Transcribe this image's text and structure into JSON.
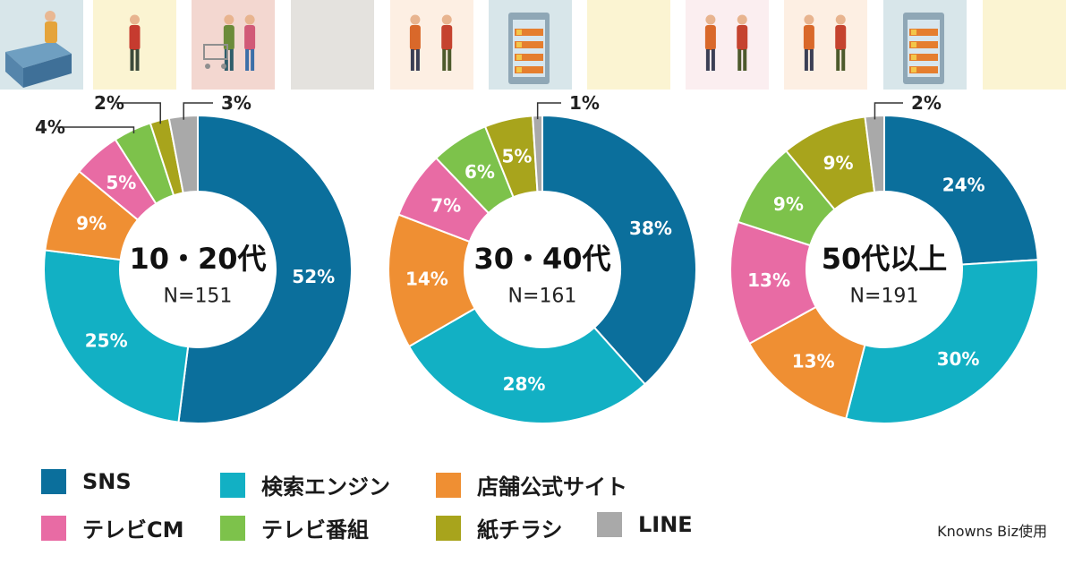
{
  "banner": {
    "tiles": [
      {
        "color": "#d8e6ea",
        "icon": "freezer-shopper-icon"
      },
      {
        "color": "#fbf4d2",
        "icon": "shopper-basket-icon"
      },
      {
        "color": "#f3d7d0",
        "icon": "family-cart-icon"
      },
      {
        "color": "#e4e2de",
        "icon": ""
      },
      {
        "color": "#fdefe3",
        "icon": "couple-shopping-icon"
      },
      {
        "color": "#d8e6ea",
        "icon": "drink-fridge-icon"
      },
      {
        "color": "#fbf4d2",
        "icon": ""
      },
      {
        "color": "#fbeef0",
        "icon": "couple-shopping-icon"
      },
      {
        "color": "#fdefe3",
        "icon": "couple-shopping-icon"
      },
      {
        "color": "#d8e6ea",
        "icon": "drink-fridge-icon"
      },
      {
        "color": "#fbf4d2",
        "icon": ""
      }
    ]
  },
  "chart_data": [
    {
      "type": "pie",
      "title": "10・20代",
      "subtitle": "N=151",
      "categories": [
        "SNS",
        "検索エンジン",
        "店舗公式サイト",
        "テレビCM",
        "テレビ番組",
        "紙チラシ",
        "LINE"
      ],
      "values": [
        52,
        25,
        9,
        5,
        4,
        2,
        3
      ],
      "labels": [
        "52%",
        "25%",
        "9%",
        "5%",
        "4%",
        "2%",
        "3%"
      ]
    },
    {
      "type": "pie",
      "title": "30・40代",
      "subtitle": "N=161",
      "categories": [
        "SNS",
        "検索エンジン",
        "店舗公式サイト",
        "テレビCM",
        "テレビ番組",
        "紙チラシ",
        "LINE"
      ],
      "values": [
        38,
        28,
        14,
        7,
        6,
        5,
        1
      ],
      "labels": [
        "38%",
        "28%",
        "14%",
        "7%",
        "6%",
        "5%",
        "1%"
      ]
    },
    {
      "type": "pie",
      "title": "50代以上",
      "subtitle": "N=191",
      "categories": [
        "SNS",
        "検索エンジン",
        "店舗公式サイト",
        "テレビCM",
        "テレビ番組",
        "紙チラシ",
        "LINE"
      ],
      "values": [
        24,
        30,
        13,
        13,
        9,
        9,
        2
      ],
      "labels": [
        "24%",
        "30%",
        "13%",
        "13%",
        "9%",
        "9%",
        "2%"
      ]
    }
  ],
  "legend": {
    "items": [
      {
        "label": "SNS",
        "color": "#0b6f9c"
      },
      {
        "label": "検索エンジン",
        "color": "#12b0c4"
      },
      {
        "label": "店舗公式サイト",
        "color": "#ef8f33"
      },
      {
        "label": "テレビCM",
        "color": "#e86ba4"
      },
      {
        "label": "テレビ番組",
        "color": "#7dc24b"
      },
      {
        "label": "紙チラシ",
        "color": "#a8a41c"
      },
      {
        "label": "LINE",
        "color": "#a9a9a9"
      }
    ]
  },
  "source": "Knowns Biz使用"
}
